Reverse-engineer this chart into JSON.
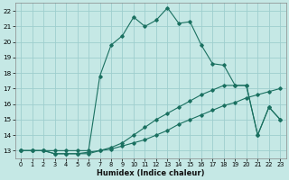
{
  "xlabel": "Humidex (Indice chaleur)",
  "xlim": [
    -0.5,
    23.5
  ],
  "ylim": [
    12.5,
    22.5
  ],
  "yticks": [
    13,
    14,
    15,
    16,
    17,
    18,
    19,
    20,
    21,
    22
  ],
  "xticks": [
    0,
    1,
    2,
    3,
    4,
    5,
    6,
    7,
    8,
    9,
    10,
    11,
    12,
    13,
    14,
    15,
    16,
    17,
    18,
    19,
    20,
    21,
    22,
    23
  ],
  "bg_color": "#c5e8e5",
  "grid_color": "#9ecece",
  "line_color": "#1a7060",
  "line1_x": [
    0,
    1,
    2,
    3,
    4,
    5,
    6,
    7,
    8,
    9,
    10,
    11,
    12,
    13,
    14,
    15,
    16,
    17,
    18,
    19,
    20,
    21,
    22,
    23
  ],
  "line1_y": [
    13,
    13,
    13,
    12.8,
    12.8,
    12.8,
    12.9,
    13.0,
    13.1,
    13.3,
    13.5,
    13.7,
    14.0,
    14.3,
    14.7,
    15.0,
    15.3,
    15.6,
    15.9,
    16.1,
    16.4,
    16.6,
    16.8,
    17.0
  ],
  "line2_x": [
    0,
    1,
    2,
    3,
    4,
    5,
    6,
    7,
    8,
    9,
    10,
    11,
    12,
    13,
    14,
    15,
    16,
    17,
    18,
    19,
    20,
    21,
    22,
    23
  ],
  "line2_y": [
    13,
    13,
    13,
    13,
    13,
    13,
    13,
    17.8,
    19.8,
    20.4,
    21.6,
    21.0,
    21.4,
    22.2,
    21.2,
    21.3,
    19.8,
    18.6,
    18.5,
    17.2,
    17.2,
    14.0,
    15.8,
    15.0
  ],
  "line3_x": [
    0,
    1,
    2,
    3,
    4,
    5,
    6,
    7,
    8,
    9,
    10,
    11,
    12,
    13,
    14,
    15,
    16,
    17,
    18,
    19,
    20,
    21,
    22,
    23
  ],
  "line3_y": [
    13,
    13,
    13,
    12.8,
    12.8,
    12.8,
    12.8,
    13.0,
    13.2,
    13.5,
    14.0,
    14.5,
    15.0,
    15.4,
    15.8,
    16.2,
    16.6,
    16.9,
    17.2,
    17.2,
    17.2,
    14.0,
    15.8,
    15.0
  ]
}
